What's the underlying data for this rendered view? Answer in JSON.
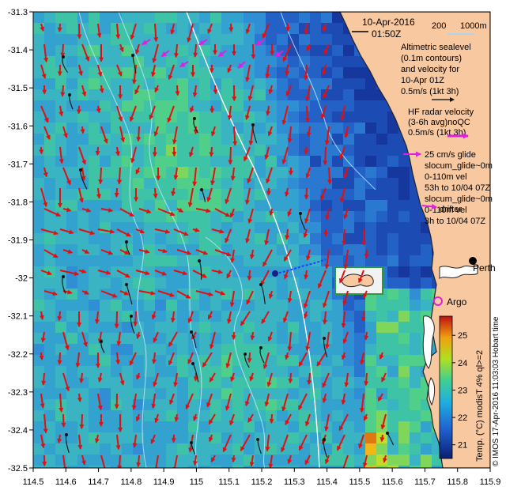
{
  "map": {
    "date_line1": "10-Apr-2016",
    "date_line2": "01:50Z",
    "depth_legend_a": "200",
    "depth_legend_b": "1000m",
    "altimetry_text": [
      "Altimetric sealevel",
      "(0.1m contours)",
      "and velocity for",
      "10-Apr 01Z",
      "0.5m/s (1kt 3h)"
    ],
    "hf_radar_text": [
      "HF radar velocity",
      "(3-6h avg)noQC",
      "0.5m/s (1kt 3h)"
    ],
    "glider_text": [
      "25 cm/s glide",
      "slocum_glide~0m",
      "0-110m vel",
      "53h to 10/04 07Z",
      "slocum_glide~0m",
      "0-110m vel",
      "3h to 10/04 07Z"
    ],
    "drifter_label": "drifter",
    "perth_label": "Perth",
    "argo_label": "Argo",
    "colorbar_label": "Temp. (°C) modisT 4% ql>=2",
    "credit": "© IMOS 17-Apr-2016 11:03:03 Hobart time",
    "colors": {
      "land": "#f8c8a0",
      "ocean_deep": "#1f3fa8",
      "current_arrow": "#e01010",
      "hf_arrow": "#e020e0",
      "glider_track": "#1a1a1a",
      "depth_contour": "#bfe8ff",
      "altimetry_contour": "#ffffff"
    }
  },
  "chart_data": {
    "type": "heatmap",
    "title": "",
    "x_ticks": [
      "114.5",
      "114.6",
      "114.7",
      "114.8",
      "114.9",
      "115",
      "115.1",
      "115.2",
      "115.3",
      "115.4",
      "115.5",
      "115.6",
      "115.7",
      "115.8",
      "115.9"
    ],
    "y_ticks": [
      "-31.3",
      "-31.4",
      "-31.5",
      "-31.6",
      "-31.7",
      "-31.8",
      "-31.9",
      "-32",
      "-32.1",
      "-32.2",
      "-32.3",
      "-32.4",
      "-32.5"
    ],
    "xlim": [
      114.5,
      115.9
    ],
    "ylim": [
      -32.5,
      -31.3
    ],
    "colorbar": {
      "ticks": [
        "21",
        "22",
        "23",
        "24",
        "25"
      ],
      "range": [
        20.5,
        25.7
      ],
      "label": "Temp. (°C) modisT 4% ql>=2"
    }
  }
}
